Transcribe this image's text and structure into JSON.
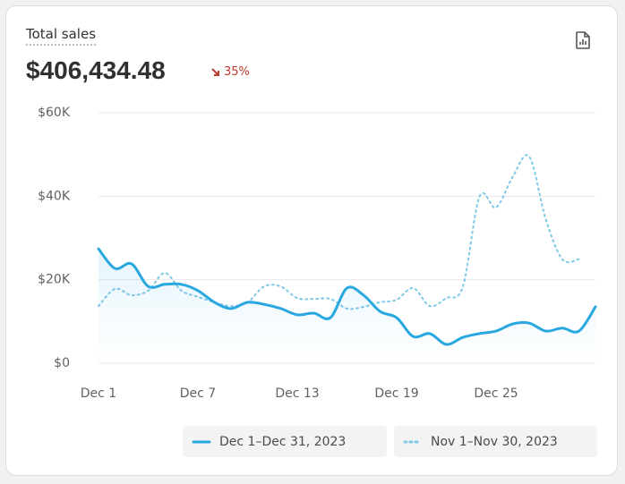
{
  "header": {
    "title": "Total sales",
    "total": "$406,434.48",
    "change": "35%"
  },
  "chart_data": {
    "type": "line",
    "categories": [
      "Dec 1",
      null,
      null,
      null,
      null,
      null,
      "Dec 7",
      null,
      null,
      null,
      null,
      null,
      "Dec 13",
      null,
      null,
      null,
      null,
      null,
      "Dec 19",
      null,
      null,
      null,
      null,
      null,
      "Dec 25",
      null,
      null,
      null,
      null,
      null,
      null
    ],
    "series": [
      {
        "name": "Dec 1–Dec 31, 2023",
        "color": "#29a8e0",
        "style": "solid",
        "values": [
          27400,
          22700,
          23800,
          18400,
          18900,
          18900,
          17400,
          14600,
          13100,
          14600,
          14100,
          13100,
          11600,
          12000,
          10900,
          18000,
          16300,
          12400,
          10900,
          6400,
          7100,
          4500,
          6200,
          7100,
          7700,
          9400,
          9600,
          7700,
          8400,
          7700,
          13500
        ]
      },
      {
        "name": "Nov 1–Nov 30, 2023",
        "color": "#7ec8e8",
        "style": "dotted",
        "values": [
          13700,
          17800,
          16300,
          17400,
          21600,
          17400,
          15900,
          14600,
          13700,
          14600,
          18400,
          18400,
          15600,
          15400,
          15400,
          13100,
          13500,
          14600,
          15200,
          18000,
          13700,
          15600,
          18400,
          39900,
          37300,
          44600,
          49500,
          34500,
          24900,
          24900,
          null
        ]
      }
    ],
    "ylim": [
      0,
      60000
    ],
    "yticks": [
      {
        "value": 0,
        "label": "$0"
      },
      {
        "value": 20000,
        "label": "$20K"
      },
      {
        "value": 40000,
        "label": "$40K"
      },
      {
        "value": 60000,
        "label": "$60K"
      }
    ],
    "grid": true
  }
}
